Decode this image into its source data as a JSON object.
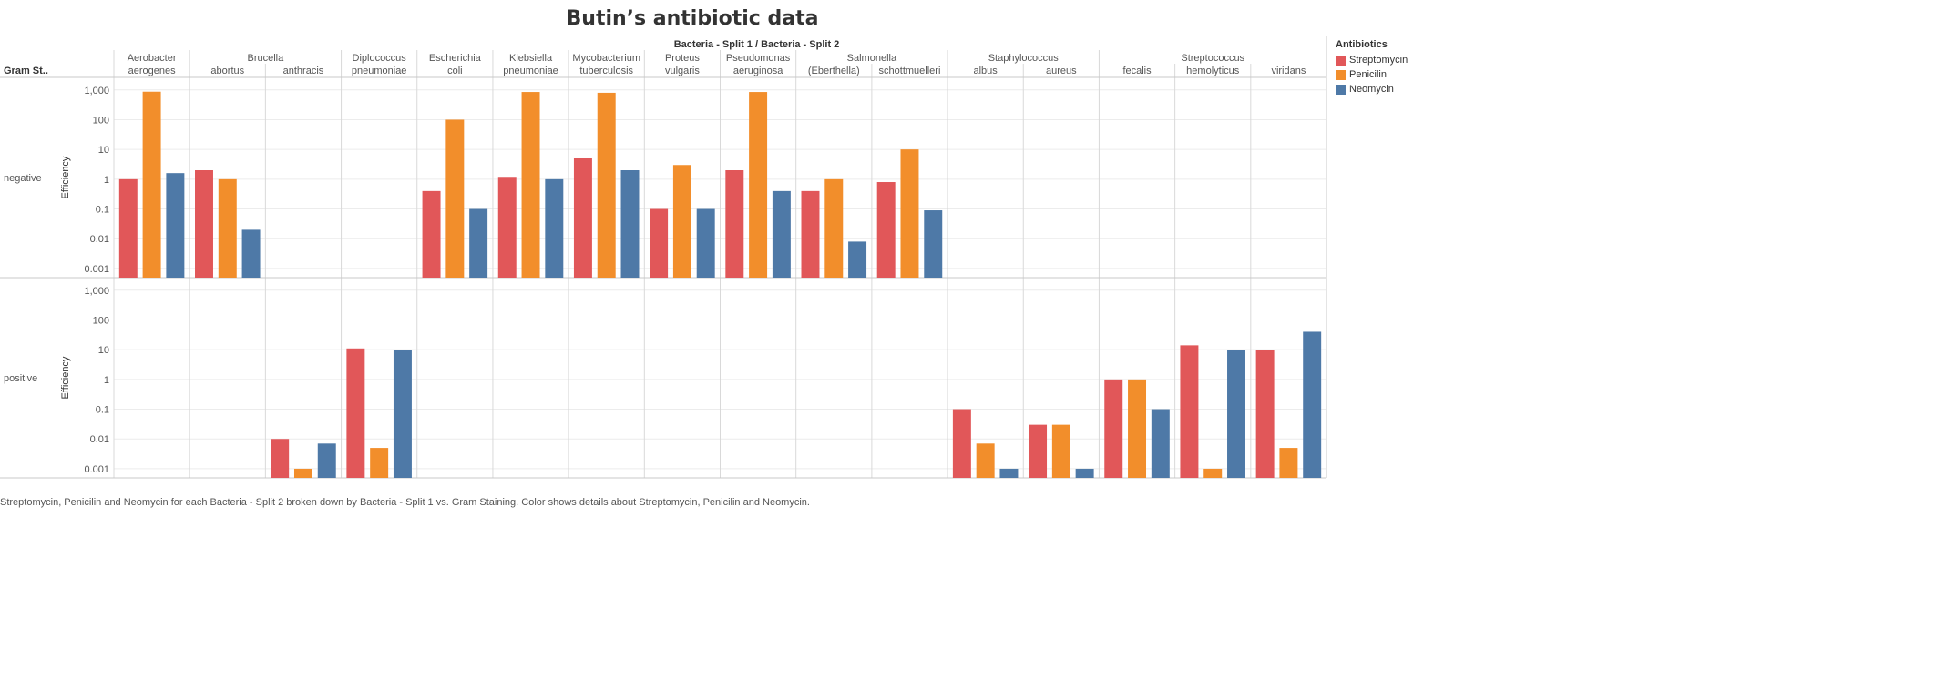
{
  "title": "Butin’s antibiotic data",
  "caption": "Streptomycin, Penicilin and Neomycin for each Bacteria - Split 2 broken down by Bacteria - Split 1 vs. Gram Staining.  Color shows details about Streptomycin, Penicilin and Neomycin.",
  "legend": {
    "title": "Antibiotics",
    "items": [
      {
        "label": "Streptomycin",
        "color": "#e15759"
      },
      {
        "label": "Penicilin",
        "color": "#f28e2b"
      },
      {
        "label": "Neomycin",
        "color": "#4e79a7"
      }
    ]
  },
  "header": {
    "column_title": "Bacteria - Split 1  /  Bacteria - Split 2",
    "row_field": "Gram St.."
  },
  "chart_data": {
    "type": "bar",
    "yscale": "log",
    "ylabel": "Efficiency",
    "ylim": [
      0.0007,
      1500
    ],
    "yticks": [
      {
        "v": 1000,
        "label": "1,000"
      },
      {
        "v": 100,
        "label": "100"
      },
      {
        "v": 10,
        "label": "10"
      },
      {
        "v": 1,
        "label": "1"
      },
      {
        "v": 0.1,
        "label": "0.1"
      },
      {
        "v": 0.01,
        "label": "0.01"
      },
      {
        "v": 0.001,
        "label": "0.001"
      }
    ],
    "series": [
      "Streptomycin",
      "Penicilin",
      "Neomycin"
    ],
    "rows": [
      "negative",
      "positive"
    ],
    "groups": [
      {
        "split1": "Aerobacter",
        "cols": [
          "aerogenes"
        ]
      },
      {
        "split1": "Brucella",
        "cols": [
          "abortus",
          "anthracis"
        ]
      },
      {
        "split1": "Diplococcus",
        "cols": [
          "pneumoniae"
        ]
      },
      {
        "split1": "Escherichia",
        "cols": [
          "coli"
        ]
      },
      {
        "split1": "Klebsiella",
        "cols": [
          "pneumoniae"
        ]
      },
      {
        "split1": "Mycobacterium",
        "cols": [
          "tuberculosis"
        ]
      },
      {
        "split1": "Proteus",
        "cols": [
          "vulgaris"
        ]
      },
      {
        "split1": "Pseudomonas",
        "cols": [
          "aeruginosa"
        ]
      },
      {
        "split1": "Salmonella",
        "cols": [
          "(Eberthella)",
          "schottmuelleri"
        ]
      },
      {
        "split1": "Staphylococcus",
        "cols": [
          "albus",
          "aureus"
        ]
      },
      {
        "split1": "Streptococcus",
        "cols": [
          "fecalis",
          "hemolyticus",
          "viridans"
        ]
      }
    ],
    "values": {
      "negative": [
        [
          1,
          870,
          1.6
        ],
        [
          2,
          1,
          0.02
        ],
        null,
        null,
        [
          0.4,
          100,
          0.1
        ],
        [
          1.2,
          850,
          1
        ],
        [
          5,
          800,
          2
        ],
        [
          0.1,
          3,
          0.1
        ],
        [
          2,
          850,
          0.4
        ],
        [
          0.4,
          1,
          0.008
        ],
        [
          0.8,
          10,
          0.09
        ],
        null,
        null,
        null,
        null,
        null
      ],
      "positive": [
        null,
        null,
        [
          0.01,
          0.001,
          0.007
        ],
        [
          11,
          0.005,
          10
        ],
        null,
        null,
        null,
        null,
        null,
        null,
        null,
        [
          0.1,
          0.007,
          0.001
        ],
        [
          0.03,
          0.03,
          0.001
        ],
        [
          1,
          1,
          0.1
        ],
        [
          14,
          0.001,
          10
        ],
        [
          10,
          0.005,
          40
        ]
      ]
    }
  }
}
